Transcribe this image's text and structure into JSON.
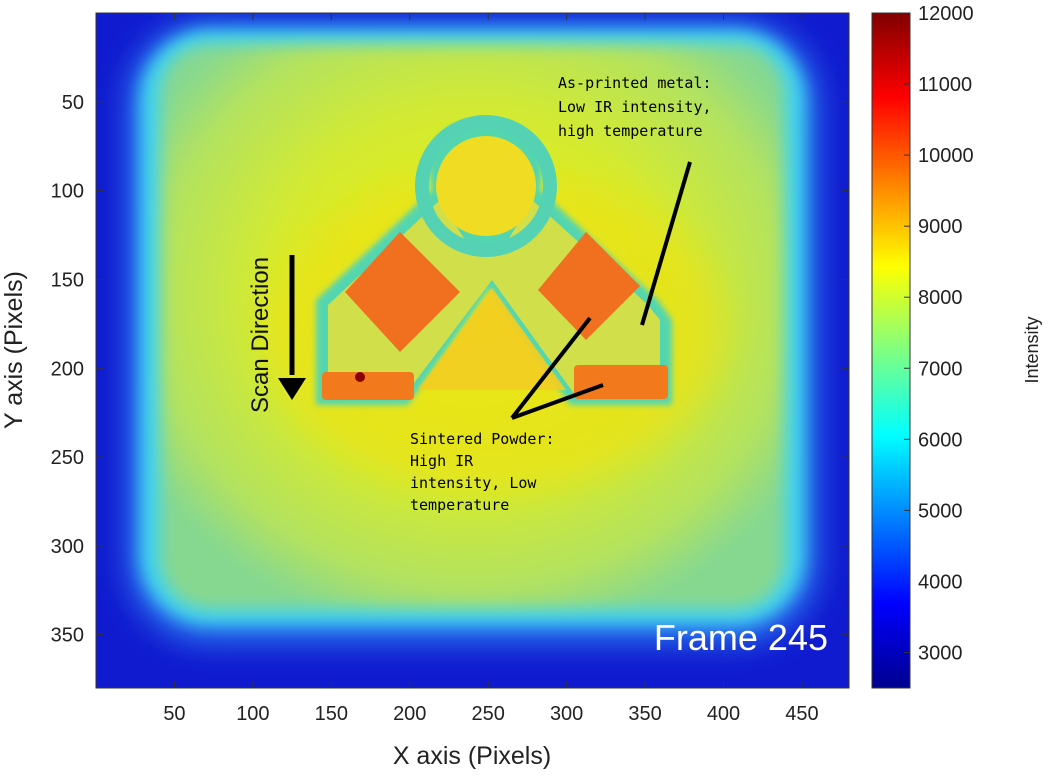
{
  "chart_data": {
    "type": "heatmap",
    "title": "",
    "xlabel": "X axis (Pixels)",
    "ylabel": "Y axis (Pixels)",
    "xlim": [
      0,
      480
    ],
    "ylim": [
      380,
      0
    ],
    "x_ticks": [
      50,
      100,
      150,
      200,
      250,
      300,
      350,
      400,
      450
    ],
    "y_ticks": [
      50,
      100,
      150,
      200,
      250,
      300,
      350
    ],
    "colorbar": {
      "label": "Intensity",
      "range": [
        2500,
        12000
      ],
      "ticks": [
        3000,
        4000,
        5000,
        6000,
        7000,
        8000,
        9000,
        10000,
        11000,
        12000
      ],
      "colormap": "jet"
    },
    "frame_label": "Frame 245",
    "scan_direction_label": "Scan Direction",
    "annotations": [
      {
        "name": "as-printed-metal",
        "lines": [
          "As-printed metal:",
          "Low IR intensity,",
          "high temperature"
        ]
      },
      {
        "name": "sintered-powder",
        "lines": [
          "Sintered Powder:",
          "High IR",
          "intensity, Low",
          "temperature"
        ]
      }
    ]
  }
}
